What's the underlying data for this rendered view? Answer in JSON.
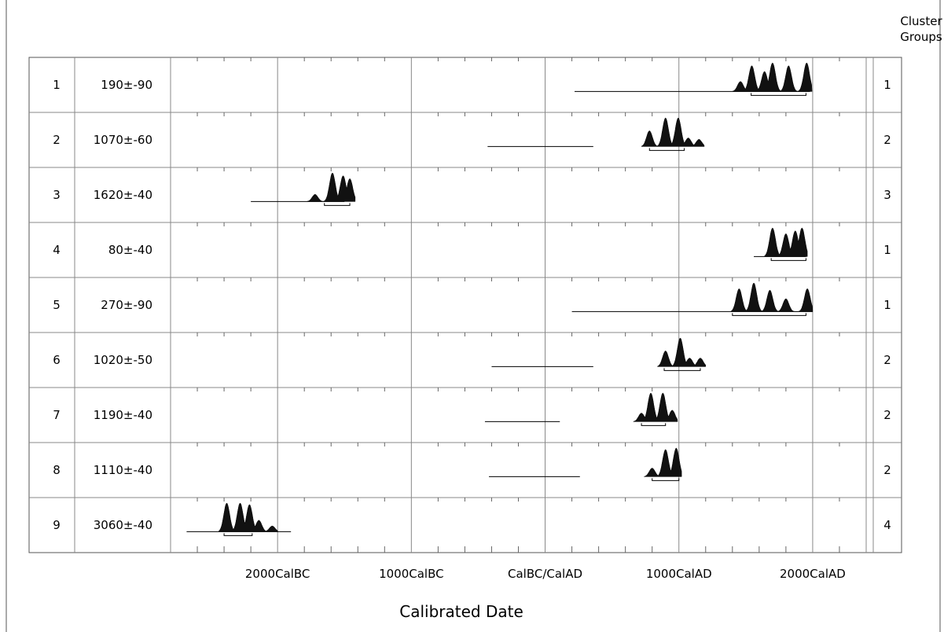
{
  "chart_data": {
    "type": "area",
    "xlabel": "Calibrated Date",
    "right_header": [
      "Cluster",
      "Groups"
    ],
    "x_range": [
      -2800,
      2400
    ],
    "x_tick_labels": [
      {
        "year": -2000,
        "label": "2000CalBC"
      },
      {
        "year": -1000,
        "label": "1000CalBC"
      },
      {
        "year": 0,
        "label": "CalBC/CalAD"
      },
      {
        "year": 1000,
        "label": "1000CalAD"
      },
      {
        "year": 2000,
        "label": "2000CalAD"
      }
    ],
    "samples": [
      {
        "index": "1",
        "date": "190±-90",
        "cluster": "1",
        "range": [
          220,
          1980
        ],
        "peaks": [
          [
            1460,
            0.35
          ],
          [
            1545,
            0.9
          ],
          [
            1640,
            0.7
          ],
          [
            1700,
            1.0
          ],
          [
            1820,
            0.9
          ],
          [
            1955,
            1.0
          ]
        ],
        "brackets": [
          [
            1540,
            1950
          ]
        ]
      },
      {
        "index": "2",
        "date": "1070±-60",
        "cluster": "2",
        "range": [
          -430,
          360
        ],
        "peaks": [
          [
            780,
            0.55
          ],
          [
            900,
            1.0
          ],
          [
            995,
            1.0
          ],
          [
            1070,
            0.3
          ],
          [
            1150,
            0.25
          ]
        ],
        "brackets": [
          [
            780,
            1040
          ]
        ]
      },
      {
        "index": "3",
        "date": "1620±-40",
        "cluster": "3",
        "range": [
          -2200,
          -1500
        ],
        "peaks": [
          [
            -1720,
            0.25
          ],
          [
            -1590,
            1.0
          ],
          [
            -1510,
            0.9
          ],
          [
            -1460,
            0.8
          ]
        ],
        "brackets": [
          [
            -1650,
            -1460
          ]
        ]
      },
      {
        "index": "4",
        "date": "80±-40",
        "cluster": "1",
        "range": [
          1560,
          1950
        ],
        "peaks": [
          [
            1700,
            1.0
          ],
          [
            1800,
            0.8
          ],
          [
            1870,
            0.9
          ],
          [
            1920,
            1.0
          ]
        ],
        "brackets": [
          [
            1690,
            1950
          ]
        ]
      },
      {
        "index": "5",
        "date": "270±-90",
        "cluster": "1",
        "range": [
          200,
          2000
        ],
        "peaks": [
          [
            1450,
            0.8
          ],
          [
            1560,
            1.0
          ],
          [
            1680,
            0.75
          ],
          [
            1800,
            0.45
          ],
          [
            1960,
            0.8
          ]
        ],
        "brackets": [
          [
            1400,
            1950
          ]
        ]
      },
      {
        "index": "6",
        "date": "1020±-50",
        "cluster": "2",
        "range": [
          -400,
          360
        ],
        "peaks": [
          [
            900,
            0.55
          ],
          [
            1010,
            1.0
          ],
          [
            1080,
            0.3
          ],
          [
            1160,
            0.3
          ]
        ],
        "brackets": [
          [
            890,
            1160
          ]
        ]
      },
      {
        "index": "7",
        "date": "1190±-40",
        "cluster": "2",
        "range": [
          -450,
          110
        ],
        "peaks": [
          [
            720,
            0.3
          ],
          [
            790,
            1.0
          ],
          [
            880,
            1.0
          ],
          [
            950,
            0.4
          ]
        ],
        "brackets": [
          [
            720,
            900
          ]
        ]
      },
      {
        "index": "8",
        "date": "1110±-40",
        "cluster": "2",
        "range": [
          -420,
          260
        ],
        "peaks": [
          [
            800,
            0.3
          ],
          [
            900,
            0.95
          ],
          [
            980,
            1.0
          ]
        ],
        "brackets": [
          [
            800,
            1000
          ]
        ]
      },
      {
        "index": "9",
        "date": "3060±-40",
        "cluster": "4",
        "range": [
          -2680,
          -1900
        ],
        "peaks": [
          [
            -2380,
            1.0
          ],
          [
            -2280,
            1.0
          ],
          [
            -2210,
            0.95
          ],
          [
            -2140,
            0.4
          ],
          [
            -2040,
            0.2
          ]
        ],
        "brackets": [
          [
            -2400,
            -2190
          ]
        ]
      }
    ]
  }
}
